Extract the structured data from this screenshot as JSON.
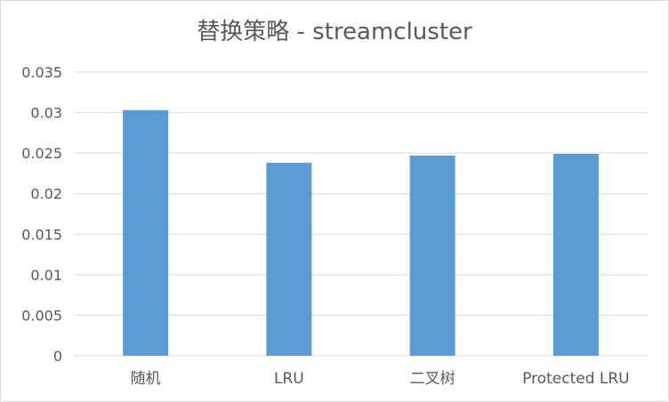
{
  "chart_data": {
    "type": "bar",
    "title": "替换策略 - streamcluster",
    "categories": [
      "随机",
      "LRU",
      "二叉树",
      "Protected LRU"
    ],
    "values": [
      0.0303,
      0.0238,
      0.0247,
      0.0249
    ],
    "ylim": [
      0,
      0.035
    ],
    "yticks": [
      "0",
      "0.005",
      "0.01",
      "0.015",
      "0.02",
      "0.025",
      "0.03",
      "0.035"
    ],
    "xlabel": "",
    "ylabel": "",
    "grid": true,
    "legend": "none",
    "bar_color": "#5b9bd5",
    "grid_color": "#d9d9d9"
  }
}
